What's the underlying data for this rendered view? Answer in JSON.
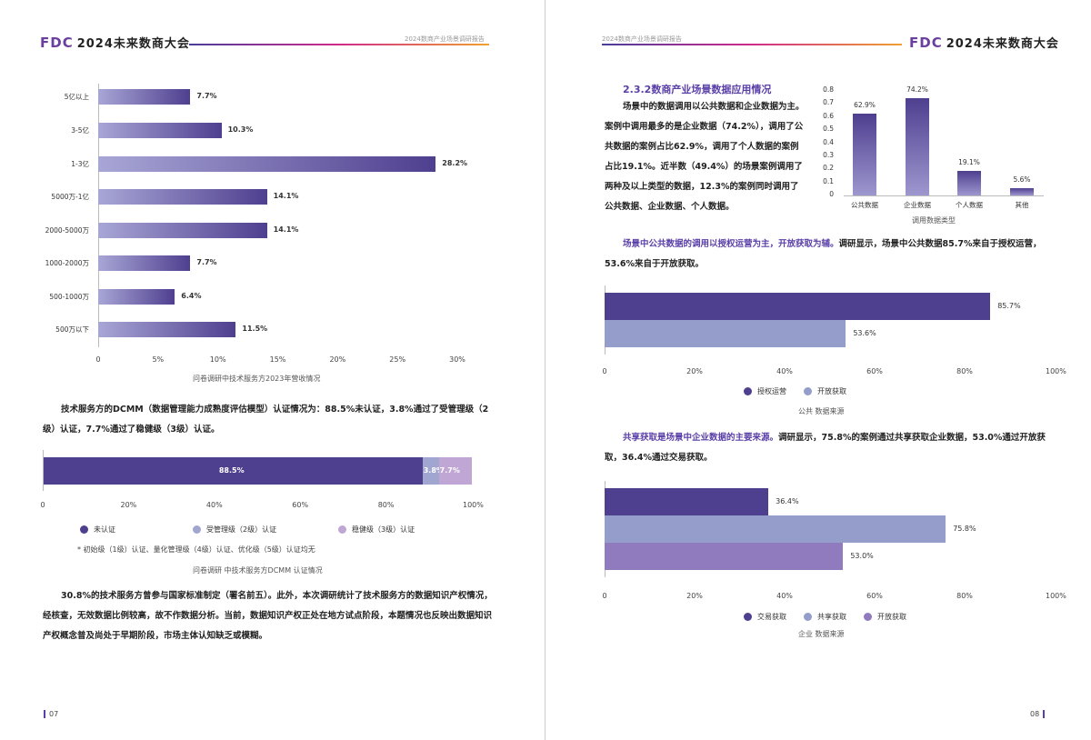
{
  "header": {
    "logo_mark": "FDC",
    "logo_text": "2024未来数商大会",
    "report_title": "2024数商产业场景调研报告"
  },
  "left": {
    "chart1": {
      "type": "bar",
      "orientation": "horizontal",
      "categories": [
        "5亿以上",
        "3-5亿",
        "1-3亿",
        "5000万-1亿",
        "2000-5000万",
        "1000-2000万",
        "500-1000万",
        "500万以下"
      ],
      "values": [
        7.7,
        10.3,
        28.2,
        14.1,
        14.1,
        7.7,
        6.4,
        11.5
      ],
      "labels": [
        "7.7%",
        "10.3%",
        "28.2%",
        "14.1%",
        "14.1%",
        "7.7%",
        "6.4%",
        "11.5%"
      ],
      "ticks": [
        "0",
        "5%",
        "10%",
        "15%",
        "20%",
        "25%",
        "30%"
      ],
      "xlim": [
        0,
        30
      ],
      "title": "问卷调研中技术服务方2023年营收情况"
    },
    "para1": "技术服务方的DCMM（数据管理能力成熟度评估模型）认证情况为：88.5%未认证，3.8%通过了受管理级（2级）认证，7.7%通过了稳健级（3级）认证。",
    "chart2": {
      "type": "bar",
      "stacked": true,
      "series": [
        {
          "name": "未认证",
          "value": 88.5,
          "label": "88.5%",
          "color": "#4f3f8f"
        },
        {
          "name": "受管理级（2级）认证",
          "value": 3.8,
          "label": "3.8%",
          "color": "#a0a6cf"
        },
        {
          "name": "稳健级（3级）认证",
          "value": 7.7,
          "label": "7.7%",
          "color": "#c0a6d5"
        }
      ],
      "ticks": [
        "0",
        "20%",
        "40%",
        "60%",
        "80%",
        "100%"
      ],
      "xlim": [
        0,
        100
      ],
      "note": "* 初始级（1级）认证、量化管理级（4级）认证、优化级（5级）认证均无",
      "title": "问卷调研 中技术服务方DCMM 认证情况"
    },
    "para2": "30.8%的技术服务方曾参与国家标准制定（署名前五）。此外，本次调研统计了技术服务方的数据知识产权情况，经核查，无效数据比例较高，故不作数据分析。当前，数据知识产权正处在地方试点阶段，本题情况也反映出数据知识产权概念普及尚处于早期阶段，市场主体认知缺乏或模糊。",
    "page": "07"
  },
  "right": {
    "heading": "2.3.2数商产业场景数据应用情况",
    "para1": "场景中的数据调用以公共数据和企业数据为主。案例中调用最多的是企业数据（74.2%），调用了公共数据的案例占比62.9%，调用了个人数据的案例占比19.1%。近半数（49.4%）的场景案例调用了两种及以上类型的数据，12.3%的案例同时调用了公共数据、企业数据、个人数据。",
    "chart1": {
      "type": "bar",
      "categories": [
        "公共数据",
        "企业数据",
        "个人数据",
        "其他"
      ],
      "values": [
        0.629,
        0.742,
        0.191,
        0.056
      ],
      "labels": [
        "62.9%",
        "74.2%",
        "19.1%",
        "5.6%"
      ],
      "yticks": [
        "0",
        "0.1",
        "0.2",
        "0.3",
        "0.4",
        "0.5",
        "0.6",
        "0.7",
        "0.8"
      ],
      "ylim": [
        0,
        0.8
      ],
      "xlabel": "调用数据类型"
    },
    "para2_hl": "场景中公共数据的调用以授权运营为主，开放获取为辅。",
    "para2": "调研显示，场景中公共数据85.7%来自于授权运营，53.6%来自于开放获取。",
    "chart2": {
      "type": "bar",
      "orientation": "horizontal",
      "series": [
        {
          "name": "授权运营",
          "value": 85.7,
          "label": "85.7%",
          "color": "#4f3f8f"
        },
        {
          "name": "开放获取",
          "value": 53.6,
          "label": "53.6%",
          "color": "#959dcb"
        }
      ],
      "ticks": [
        "0",
        "20%",
        "40%",
        "60%",
        "80%",
        "100%"
      ],
      "xlim": [
        0,
        100
      ],
      "title": "公共 数据来源"
    },
    "para3_hl": "共享获取是场景中企业数据的主要来源。",
    "para3": "调研显示，75.8%的案例通过共享获取企业数据，53.0%通过开放获取，36.4%通过交易获取。",
    "chart3": {
      "type": "bar",
      "orientation": "horizontal",
      "series": [
        {
          "name": "交易获取",
          "value": 36.4,
          "label": "36.4%",
          "color": "#4f3f8f"
        },
        {
          "name": "共享获取",
          "value": 75.8,
          "label": "75.8%",
          "color": "#959dcb"
        },
        {
          "name": "开放获取",
          "value": 53.0,
          "label": "53.0%",
          "color": "#8f7bbd"
        }
      ],
      "ticks": [
        "0",
        "20%",
        "40%",
        "60%",
        "80%",
        "100%"
      ],
      "xlim": [
        0,
        100
      ],
      "title": "企业 数据来源"
    },
    "page": "08"
  }
}
